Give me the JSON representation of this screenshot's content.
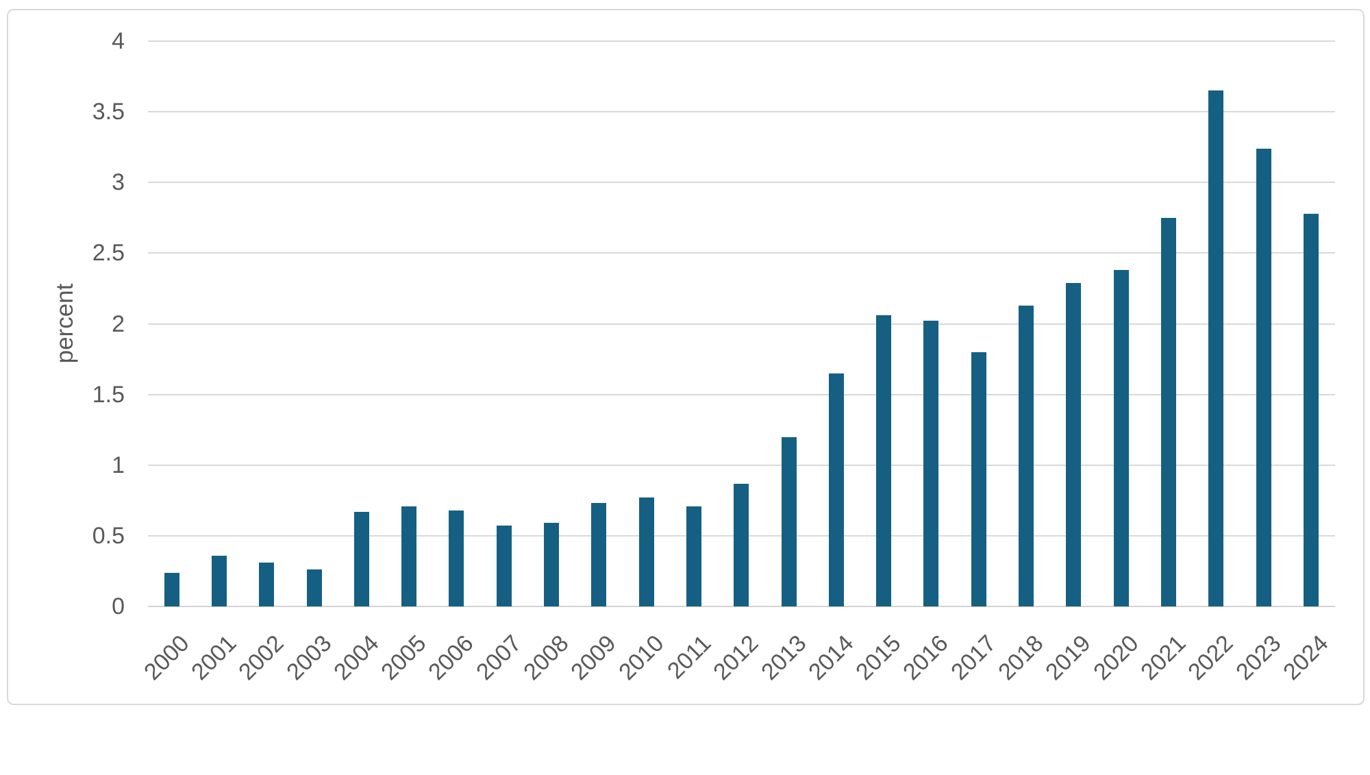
{
  "chart_data": {
    "type": "bar",
    "title": "",
    "xlabel": "",
    "ylabel": "percent",
    "categories": [
      "2000",
      "2001",
      "2002",
      "2003",
      "2004",
      "2005",
      "2006",
      "2007",
      "2008",
      "2009",
      "2010",
      "2011",
      "2012",
      "2013",
      "2014",
      "2015",
      "2016",
      "2017",
      "2018",
      "2019",
      "2020",
      "2021",
      "2022",
      "2023",
      "2024"
    ],
    "values": [
      0.24,
      0.36,
      0.31,
      0.26,
      0.67,
      0.71,
      0.68,
      0.57,
      0.59,
      0.73,
      0.77,
      0.71,
      0.87,
      1.2,
      1.65,
      2.06,
      2.02,
      1.8,
      2.13,
      2.29,
      2.38,
      2.75,
      3.65,
      3.24,
      2.78
    ],
    "ylim": [
      0,
      4
    ],
    "yticks": [
      "0",
      "0.5",
      "1",
      "1.5",
      "2",
      "2.5",
      "3",
      "3.5",
      "4"
    ],
    "grid": true,
    "legend": "none",
    "colors": {
      "bar": "#156082",
      "gridline": "#D9D9D9",
      "axis_line": "#D2D2D2",
      "axis_text": "#595959",
      "frame_border": "#D9D9D9",
      "background": "#FFFFFF"
    }
  }
}
